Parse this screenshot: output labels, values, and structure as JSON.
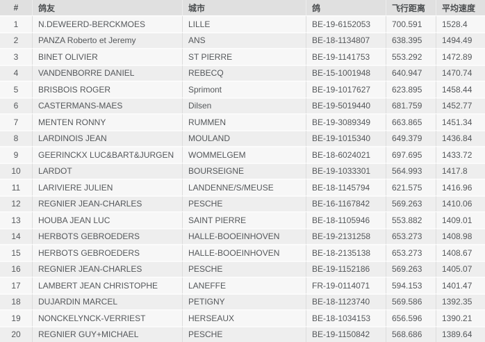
{
  "colors": {
    "header_background": "#e0e0e0",
    "row_odd_background": "#f7f7f7",
    "row_even_background": "#eeeeee",
    "text": "#54575a"
  },
  "table": {
    "columns": [
      {
        "key": "rank",
        "label": "#"
      },
      {
        "key": "fancier",
        "label": "鸽友"
      },
      {
        "key": "city",
        "label": "城市"
      },
      {
        "key": "ring",
        "label": "鸽"
      },
      {
        "key": "distance",
        "label": "飞行距离"
      },
      {
        "key": "speed",
        "label": "平均速度"
      }
    ],
    "rows": [
      [
        "1",
        "N.DEWEERD-BERCKMOES",
        "LILLE",
        "BE-19-6152053",
        "700.591",
        "1528.4"
      ],
      [
        "2",
        "PANZA Roberto et Jeremy",
        "ANS",
        "BE-18-1134807",
        "638.395",
        "1494.49"
      ],
      [
        "3",
        "BINET OLIVIER",
        "ST PIERRE",
        "BE-19-1141753",
        "553.292",
        "1472.89"
      ],
      [
        "4",
        "VANDENBORRE DANIEL",
        "REBECQ",
        "BE-15-1001948",
        "640.947",
        "1470.74"
      ],
      [
        "5",
        "BRISBOIS ROGER",
        "Sprimont",
        "BE-19-1017627",
        "623.895",
        "1458.44"
      ],
      [
        "6",
        "CASTERMANS-MAES",
        "Dilsen",
        "BE-19-5019440",
        "681.759",
        "1452.77"
      ],
      [
        "7",
        "MENTEN RONNY",
        "RUMMEN",
        "BE-19-3089349",
        "663.865",
        "1451.34"
      ],
      [
        "8",
        "LARDINOIS JEAN",
        "MOULAND",
        "BE-19-1015340",
        "649.379",
        "1436.84"
      ],
      [
        "9",
        "GEERINCKX LUC&BART&JURGEN",
        "WOMMELGEM",
        "BE-18-6024021",
        "697.695",
        "1433.72"
      ],
      [
        "10",
        "LARDOT",
        "BOURSEIGNE",
        "BE-19-1033301",
        "564.993",
        "1417.8"
      ],
      [
        "11",
        "LARIVIERE JULIEN",
        "LANDENNE/S/MEUSE",
        "BE-18-1145794",
        "621.575",
        "1416.96"
      ],
      [
        "12",
        "REGNIER JEAN-CHARLES",
        "PESCHE",
        "BE-16-1167842",
        "569.263",
        "1410.06"
      ],
      [
        "13",
        "HOUBA JEAN LUC",
        "SAINT PIERRE",
        "BE-18-1105946",
        "553.882",
        "1409.01"
      ],
      [
        "14",
        "HERBOTS GEBROEDERS",
        "HALLE-BOOEINHOVEN",
        "BE-19-2131258",
        "653.273",
        "1408.98"
      ],
      [
        "15",
        "HERBOTS GEBROEDERS",
        "HALLE-BOOEINHOVEN",
        "BE-18-2135138",
        "653.273",
        "1408.67"
      ],
      [
        "16",
        "REGNIER JEAN-CHARLES",
        "PESCHE",
        "BE-19-1152186",
        "569.263",
        "1405.07"
      ],
      [
        "17",
        "LAMBERT JEAN CHRISTOPHE",
        "LANEFFE",
        "FR-19-0114071",
        "594.153",
        "1401.47"
      ],
      [
        "18",
        "DUJARDIN MARCEL",
        "PETIGNY",
        "BE-18-1123740",
        "569.586",
        "1392.35"
      ],
      [
        "19",
        "NONCKELYNCK-VERRIEST",
        "HERSEAUX",
        "BE-18-1034153",
        "656.596",
        "1390.21"
      ],
      [
        "20",
        "REGNIER GUY+MICHAEL",
        "PESCHE",
        "BE-19-1150842",
        "568.686",
        "1389.64"
      ]
    ]
  }
}
